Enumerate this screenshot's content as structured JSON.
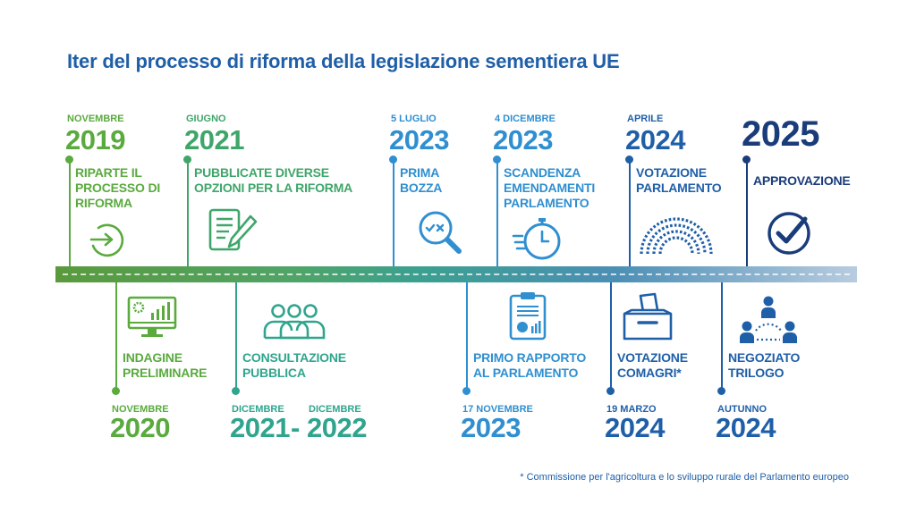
{
  "title": "Iter del processo di riforma della legislazione sementiera UE",
  "colors": {
    "green": "#5aaa3e",
    "teal": "#2fa58e",
    "blue": "#2f8fd0",
    "navy": "#1f5fa8",
    "darknavy": "#1a3c7a"
  },
  "events_top": [
    {
      "period": "NOVEMBRE",
      "year": "2019",
      "line1": "RIPARTE IL",
      "line2": "PROCESSO DI",
      "line3": "RIFORMA",
      "icon": "arrow-circle-icon"
    },
    {
      "period": "GIUGNO",
      "year": "2021",
      "line1": "PUBBLICATE DIVERSE",
      "line2": "OPZIONI PER LA RIFORMA",
      "icon": "document-pen-icon"
    },
    {
      "period": "5 LUGLIO",
      "year": "2023",
      "line1": "PRIMA",
      "line2": "BOZZA",
      "icon": "magnifier-icon"
    },
    {
      "period": "4 DICEMBRE",
      "year": "2023",
      "line1": "SCANDENZA",
      "line2": "EMENDAMENTI",
      "line3": "PARLAMENTO",
      "icon": "stopwatch-icon"
    },
    {
      "period": "APRILE",
      "year": "2024",
      "line1": "VOTAZIONE",
      "line2": "PARLAMENTO",
      "icon": "parliament-icon"
    },
    {
      "period": "",
      "year": "2025",
      "line1": "APPROVAZIONE",
      "icon": "check-circle-icon"
    }
  ],
  "events_bottom": [
    {
      "period": "NOVEMBRE",
      "year": "2020",
      "line1": "INDAGINE",
      "line2": "PRELIMINARE",
      "icon": "monitor-chart-icon"
    },
    {
      "period_a": "DICEMBRE",
      "year_a": "2021",
      "dash": "-",
      "period_b": "DICEMBRE",
      "year_b": "2022",
      "line1": "CONSULTAZIONE",
      "line2": "PUBBLICA",
      "icon": "people-group-icon"
    },
    {
      "period": "17 NOVEMBRE",
      "year": "2023",
      "line1": "PRIMO RAPPORTO",
      "line2": "AL PARLAMENTO",
      "icon": "clipboard-report-icon"
    },
    {
      "period": "19 MARZO",
      "year": "2024",
      "line1": "VOTAZIONE",
      "line2": "COMAGRI*",
      "icon": "ballot-box-icon"
    },
    {
      "period": "AUTUNNO",
      "year": "2024",
      "line1": "NEGOZIATO",
      "line2": "TRILOGO",
      "icon": "trilogue-people-icon"
    }
  ],
  "footnote": "* Commissione per l'agricoltura e lo sviluppo rurale del Parlamento europeo"
}
